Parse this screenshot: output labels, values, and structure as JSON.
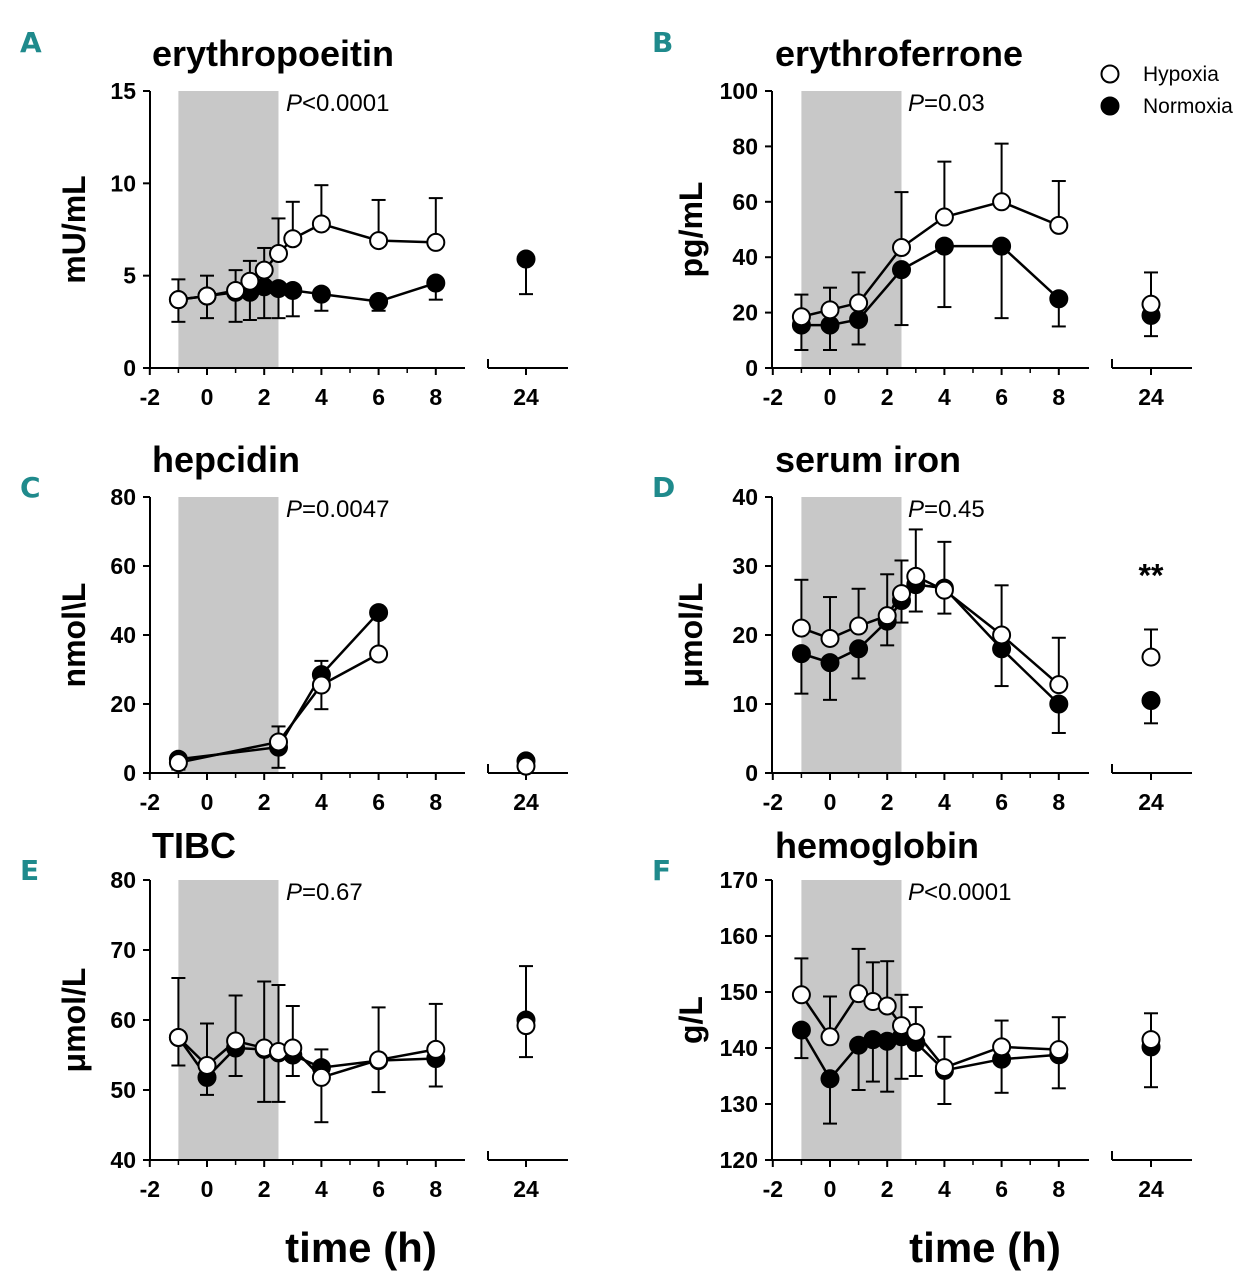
{
  "chart_data": [
    {
      "letter": "A",
      "title": "erythropoeitin",
      "type": "line",
      "ylabel": "mU/mL",
      "ylim": [
        0,
        15
      ],
      "yticks": [
        "0",
        "5",
        "10",
        "15"
      ],
      "xticks": [
        "-2",
        "0",
        "2",
        "4",
        "6",
        "8"
      ],
      "x24_label": "24",
      "shaded_interval_h": [
        -1,
        2.5
      ],
      "pvalue": {
        "p": "P",
        "rest": "<0.0001"
      },
      "series": [
        {
          "name": "Normoxia",
          "x": [
            -1,
            0,
            1,
            1.5,
            2,
            2.5,
            3,
            4,
            6,
            8,
            24
          ],
          "y": [
            3.7,
            3.9,
            4.1,
            4.1,
            4.4,
            4.3,
            4.2,
            4.0,
            3.6,
            4.6,
            5.9
          ],
          "err": [
            1.2,
            1.2,
            1.6,
            1.5,
            1.7,
            1.6,
            1.4,
            0.9,
            0.5,
            0.9,
            1.9
          ]
        },
        {
          "name": "Hypoxia",
          "x": [
            -1,
            0,
            1,
            1.5,
            2,
            2.5,
            3,
            4,
            6,
            8
          ],
          "y": [
            3.7,
            3.9,
            4.2,
            4.7,
            5.3,
            6.2,
            7.0,
            7.8,
            6.9,
            6.8
          ],
          "err": [
            1.1,
            1.1,
            1.1,
            1.1,
            1.2,
            1.9,
            2.0,
            2.1,
            2.2,
            2.4
          ]
        }
      ]
    },
    {
      "letter": "B",
      "title": "erythroferrone",
      "type": "line",
      "ylabel": "pg/mL",
      "ylim": [
        0,
        100
      ],
      "yticks": [
        "0",
        "20",
        "40",
        "60",
        "80",
        "100"
      ],
      "xticks": [
        "-2",
        "0",
        "2",
        "4",
        "6",
        "8"
      ],
      "x24_label": "24",
      "shaded_interval_h": [
        -1,
        2.5
      ],
      "pvalue": {
        "p": "P",
        "rest": "=0.03"
      },
      "series": [
        {
          "name": "Normoxia",
          "x": [
            -1,
            0,
            1,
            2.5,
            4,
            6,
            8,
            24
          ],
          "y": [
            15.5,
            15.5,
            17.5,
            35.5,
            44,
            44,
            25,
            19
          ],
          "err": [
            9,
            9,
            9,
            20,
            22,
            26,
            10,
            7.5
          ]
        },
        {
          "name": "Hypoxia",
          "x": [
            -1,
            0,
            1,
            2.5,
            4,
            6,
            8,
            24
          ],
          "y": [
            18.5,
            21,
            23.5,
            43.5,
            54.5,
            60,
            51.5,
            23
          ],
          "err": [
            8,
            8,
            11,
            20,
            20,
            21,
            16,
            11.5
          ]
        }
      ]
    },
    {
      "letter": "C",
      "title": "hepcidin",
      "type": "line",
      "ylabel": "nmol\\L",
      "ylim": [
        0,
        80
      ],
      "yticks": [
        "0",
        "20",
        "40",
        "60",
        "80"
      ],
      "xticks": [
        "-2",
        "0",
        "2",
        "4",
        "6",
        "8"
      ],
      "x24_label": "24",
      "shaded_interval_h": [
        -1,
        2.5
      ],
      "pvalue": {
        "p": "P",
        "rest": "=0.0047"
      },
      "series": [
        {
          "name": "Normoxia",
          "x": [
            -1,
            2.5,
            4,
            6,
            24
          ],
          "y": [
            4,
            7.5,
            28.5,
            46.5,
            3.5
          ],
          "err": [
            3,
            6,
            10,
            13,
            0
          ]
        },
        {
          "name": "Hypoxia",
          "x": [
            -1,
            2.5,
            4,
            6,
            24
          ],
          "y": [
            3,
            9,
            25.5,
            34.5,
            2
          ],
          "err": [
            2.5,
            4.5,
            7,
            12.5,
            0
          ]
        }
      ]
    },
    {
      "letter": "D",
      "title": "serum iron",
      "type": "line",
      "ylabel": "μmol/L",
      "ylim": [
        0,
        40
      ],
      "yticks": [
        "0",
        "10",
        "20",
        "30",
        "40"
      ],
      "xticks": [
        "-2",
        "0",
        "2",
        "4",
        "6",
        "8"
      ],
      "x24_label": "24",
      "shaded_interval_h": [
        -1,
        2.5
      ],
      "pvalue": {
        "p": "P",
        "rest": "=0.45"
      },
      "significance_24h": "**",
      "series": [
        {
          "name": "Normoxia",
          "x": [
            -1,
            0,
            1,
            2,
            2.5,
            3,
            4,
            6,
            8,
            24
          ],
          "y": [
            17.3,
            16,
            18,
            22,
            25,
            27.3,
            26.8,
            18,
            10,
            10.5
          ],
          "err": [
            5.8,
            5.4,
            4.3,
            3.5,
            3.2,
            3.9,
            3.7,
            5.4,
            4.2,
            3.3
          ]
        },
        {
          "name": "Hypoxia",
          "x": [
            -1,
            0,
            1,
            2,
            2.5,
            3,
            4,
            6,
            8,
            24
          ],
          "y": [
            21,
            19.5,
            21.3,
            22.8,
            26,
            28.5,
            26.5,
            20,
            12.8,
            16.8
          ],
          "err": [
            7,
            6,
            5.4,
            6,
            4.8,
            6.8,
            7,
            7.2,
            6.8,
            4
          ]
        }
      ]
    },
    {
      "letter": "E",
      "title": "TIBC",
      "type": "line",
      "ylabel": "μmol/L",
      "ylim": [
        40,
        80
      ],
      "yticks": [
        "40",
        "50",
        "60",
        "70",
        "80"
      ],
      "xticks": [
        "-2",
        "0",
        "2",
        "4",
        "6",
        "8"
      ],
      "x24_label": "24",
      "shaded_interval_h": [
        -1,
        2.5
      ],
      "pvalue": {
        "p": "P",
        "rest": "=0.67"
      },
      "series": [
        {
          "name": "Normoxia",
          "x": [
            -1,
            0,
            1,
            2,
            2.5,
            3,
            4,
            6,
            8,
            24
          ],
          "y": [
            57.5,
            51.8,
            56,
            55.8,
            55.3,
            55,
            53.2,
            54.2,
            54.5,
            60
          ],
          "err": [
            4,
            2.5,
            4,
            7.5,
            7,
            3,
            7.8,
            4.5,
            4,
            5.3
          ]
        },
        {
          "name": "Hypoxia",
          "x": [
            -1,
            0,
            1,
            2,
            2.5,
            3,
            4,
            6,
            8,
            24
          ],
          "y": [
            57.5,
            53.5,
            57,
            56,
            55.5,
            56,
            51.8,
            54.3,
            55.8,
            59.2
          ],
          "err": [
            8.5,
            6,
            6.5,
            9.5,
            9.5,
            6,
            4,
            7.5,
            6.5,
            8.5
          ]
        }
      ]
    },
    {
      "letter": "F",
      "title": "hemoglobin",
      "type": "line",
      "ylabel": "g/L",
      "ylim": [
        120,
        170
      ],
      "yticks": [
        "120",
        "130",
        "140",
        "150",
        "160",
        "170"
      ],
      "xticks": [
        "-2",
        "0",
        "2",
        "4",
        "6",
        "8"
      ],
      "x24_label": "24",
      "shaded_interval_h": [
        -1,
        2.5
      ],
      "pvalue": {
        "p": "P",
        "rest": "<0.0001"
      },
      "series": [
        {
          "name": "Normoxia",
          "x": [
            -1,
            0,
            1,
            1.5,
            2,
            2.5,
            3,
            4,
            6,
            8,
            24
          ],
          "y": [
            143.2,
            134.5,
            140.5,
            141.5,
            141.2,
            142,
            141,
            136,
            138,
            138.8,
            140.2
          ],
          "err": [
            5,
            8,
            8,
            7.5,
            9,
            7.5,
            6,
            6,
            6,
            6,
            7.2
          ]
        },
        {
          "name": "Hypoxia",
          "x": [
            -1,
            0,
            1,
            1.5,
            2,
            2.5,
            3,
            4,
            6,
            8,
            24
          ],
          "y": [
            149.5,
            142,
            149.7,
            148.3,
            147.5,
            144,
            142.8,
            136.5,
            140.2,
            139.7,
            141.5
          ],
          "err": [
            6.5,
            7.2,
            8,
            7,
            8,
            5.5,
            4.5,
            5.5,
            4.7,
            5.8,
            4.7
          ]
        }
      ]
    }
  ],
  "legend": {
    "hypoxia": "Hypoxia",
    "normoxia": "Normoxia"
  },
  "xlabel": "time (h)"
}
